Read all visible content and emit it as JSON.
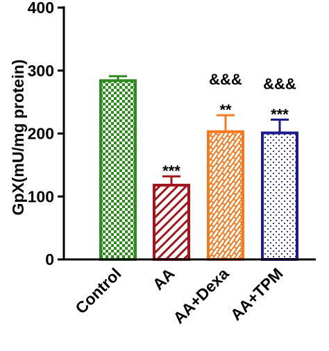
{
  "chart_data": {
    "type": "bar",
    "ylabel": "GpX(mU/mg protein)",
    "ylim": [
      0,
      400
    ],
    "yticks": [
      "0",
      "100",
      "200",
      "300",
      "400"
    ],
    "categories": [
      "Control",
      "AA",
      "AA+Dexa",
      "AA+TPM"
    ],
    "values": [
      284,
      118,
      203,
      201
    ],
    "errors": [
      7,
      14,
      26,
      21
    ],
    "annotations": [
      {
        "category": "AA",
        "lines": [
          "***"
        ]
      },
      {
        "category": "AA+Dexa",
        "lines": [
          "&&&",
          "**"
        ]
      },
      {
        "category": "AA+TPM",
        "lines": [
          "&&&",
          "***"
        ]
      }
    ],
    "colors": [
      "#2e8b1e",
      "#a3141d",
      "#f47a1f",
      "#1c1a8c"
    ],
    "patterns": [
      "checkerboard",
      "diagonal-lines",
      "brick",
      "dots"
    ],
    "grid": false
  }
}
